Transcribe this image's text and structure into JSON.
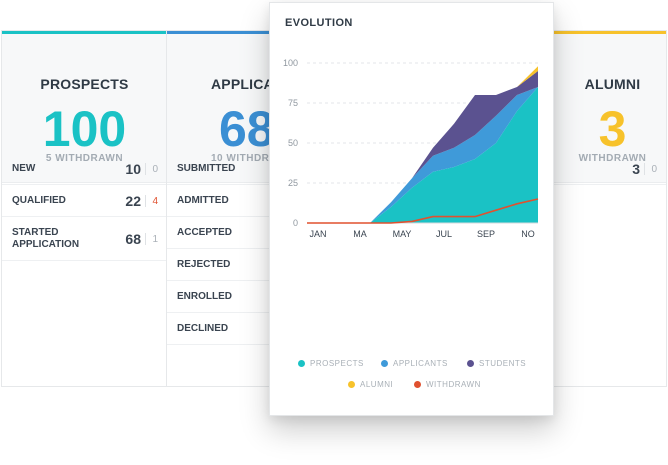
{
  "cards": {
    "prospects": {
      "title": "PROSPECTS",
      "total": "100",
      "withdrawn": "5 WITHDRAWN",
      "color": "#1ac2c5",
      "rows": [
        {
          "label": "NEW",
          "value": "10",
          "minor": "0",
          "minor_color": "#aab1b8"
        },
        {
          "label": "QUALIFIED",
          "value": "22",
          "minor": "4",
          "minor_color": "#e0512f"
        },
        {
          "label": "STARTED\nAPPLICATION",
          "value": "68",
          "minor": "1",
          "minor_color": "#aab1b8"
        }
      ]
    },
    "applicants": {
      "title": "APPLICAN",
      "total": "68",
      "withdrawn": "10 WITHDRA",
      "color": "#3b8fd4",
      "rows": [
        {
          "label": "SUBMITTED"
        },
        {
          "label": "ADMITTED"
        },
        {
          "label": "ACCEPTED"
        },
        {
          "label": "REJECTED"
        },
        {
          "label": "ENROLLED"
        },
        {
          "label": "DECLINED"
        }
      ]
    },
    "alumni": {
      "title": "ALUMNI",
      "total": "3",
      "withdrawn": "WITHDRAWN",
      "color": "#f7c22b",
      "rows": [
        {
          "value": "3",
          "minor": "0"
        }
      ]
    }
  },
  "evolution": {
    "title": "EVOLUTION",
    "legend": [
      {
        "label": "PROSPECTS",
        "color": "#1ac2c5",
        "icon": "prospects-dot-icon"
      },
      {
        "label": "APPLICANTS",
        "color": "#3f9ad9",
        "icon": "applicants-dot-icon"
      },
      {
        "label": "STUDENTS",
        "color": "#5b5290",
        "icon": "students-dot-icon"
      },
      {
        "label": "ALUMNI",
        "color": "#f7c22b",
        "icon": "alumni-dot-icon"
      },
      {
        "label": "WITHDRAWN",
        "color": "#e0512f",
        "icon": "withdrawn-dot-icon"
      }
    ]
  },
  "chart_data": {
    "type": "area",
    "title": "EVOLUTION",
    "x_ticks": [
      "JAN",
      "MA",
      "MAY",
      "JUL",
      "SEP",
      "NO"
    ],
    "x": [
      1,
      2,
      3,
      4,
      5,
      6,
      7,
      8,
      9,
      10,
      11,
      12
    ],
    "ylim": [
      0,
      100
    ],
    "y_ticks": [
      0,
      25,
      50,
      75,
      100
    ],
    "grid": true,
    "legend_position": "bottom",
    "stacked": true,
    "series": [
      {
        "name": "PROSPECTS",
        "color": "#1ac2c5",
        "values": [
          0,
          0,
          0,
          0,
          10,
          22,
          32,
          35,
          40,
          50,
          70,
          85
        ]
      },
      {
        "name": "APPLICANTS",
        "color": "#3f9ad9",
        "values": [
          0,
          0,
          0,
          0,
          3,
          6,
          10,
          12,
          15,
          17,
          10,
          0
        ]
      },
      {
        "name": "STUDENTS",
        "color": "#5b5290",
        "values": [
          0,
          0,
          0,
          0,
          0,
          0,
          5,
          15,
          25,
          13,
          5,
          10
        ]
      },
      {
        "name": "ALUMNI",
        "color": "#f7c22b",
        "values": [
          0,
          0,
          0,
          0,
          0,
          0,
          0,
          0,
          0,
          0,
          0,
          3
        ]
      }
    ],
    "lines": [
      {
        "name": "WITHDRAWN",
        "color": "#e0512f",
        "values": [
          0,
          0,
          0,
          0,
          0,
          1,
          4,
          4,
          4,
          8,
          12,
          15
        ]
      }
    ]
  }
}
